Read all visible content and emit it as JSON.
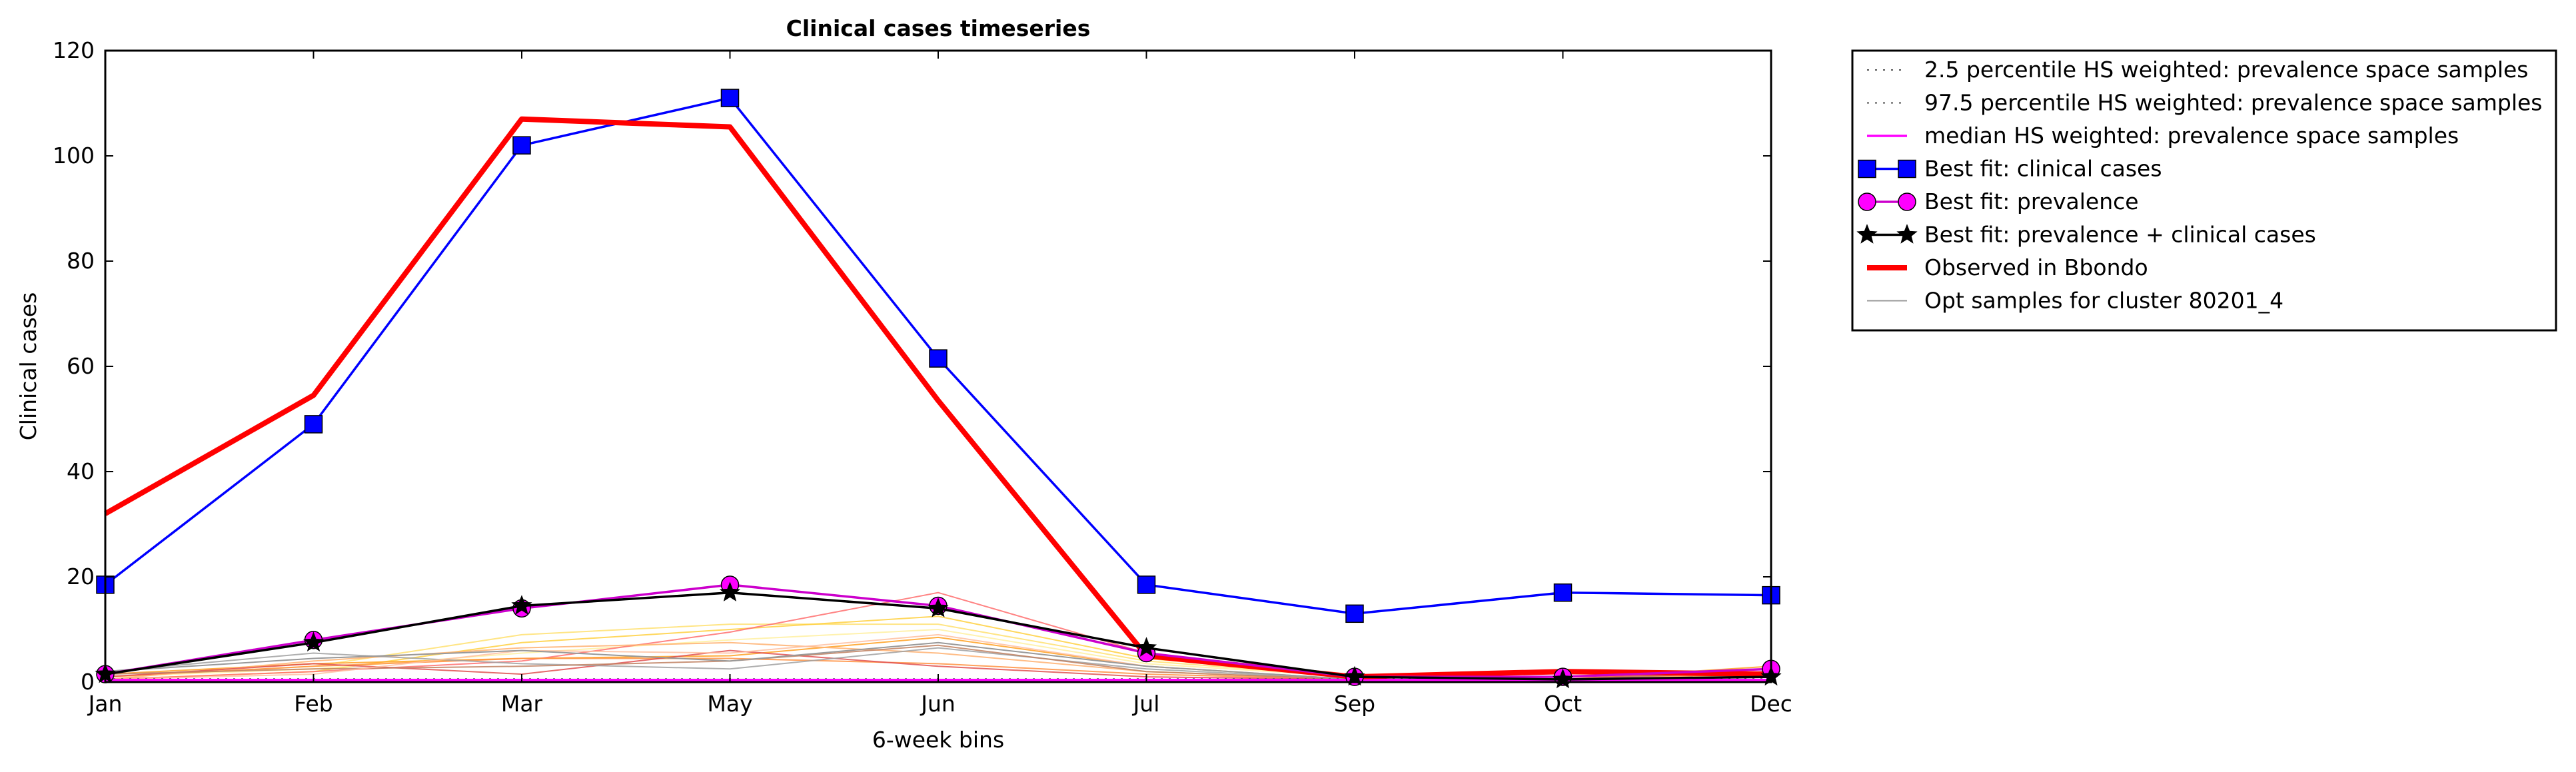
{
  "chart_data": {
    "type": "line",
    "title": "Clinical cases timeseries",
    "xlabel": "6-week bins",
    "ylabel": "Clinical cases",
    "categories": [
      "Jan",
      "Feb",
      "Mar",
      "May",
      "Jun",
      "Jul",
      "Sep",
      "Oct",
      "Dec"
    ],
    "ylim": [
      0,
      120
    ],
    "yticks": [
      0,
      20,
      40,
      60,
      80,
      100,
      120
    ],
    "grid": false,
    "legend_placement": "outside-top-right",
    "series": [
      {
        "name": "2.5 percentile HS weighted: prevalence space samples",
        "style": "dotted",
        "color": "#555555",
        "values": [
          0.3,
          0.3,
          0.3,
          0.3,
          0.3,
          0.3,
          0.3,
          0.3,
          0.3
        ]
      },
      {
        "name": "97.5 percentile HS weighted: prevalence space samples",
        "style": "dotted",
        "color": "#555555",
        "values": [
          0.6,
          0.6,
          0.6,
          0.6,
          0.6,
          0.6,
          0.6,
          0.6,
          0.6
        ]
      },
      {
        "name": "median HS weighted: prevalence space samples",
        "style": "solid",
        "color": "#ff00ff",
        "values": [
          0.4,
          0.4,
          0.4,
          0.4,
          0.4,
          0.4,
          0.4,
          0.4,
          0.4
        ]
      },
      {
        "name": "Best fit: clinical cases",
        "style": "solid",
        "marker": "square",
        "color": "#0000ff",
        "values": [
          18.5,
          49,
          102,
          111,
          61.5,
          18.5,
          13,
          17,
          16.5
        ]
      },
      {
        "name": "Best fit: prevalence",
        "style": "solid",
        "marker": "circle",
        "color": "#cc00cc",
        "values": [
          1.5,
          8,
          14,
          18.5,
          14.5,
          5.5,
          1,
          1,
          2.5
        ]
      },
      {
        "name": "Best fit: prevalence + clinical cases",
        "style": "solid",
        "marker": "star",
        "color": "#000000",
        "values": [
          1.5,
          7.5,
          14.5,
          17,
          14,
          6.5,
          1,
          0.5,
          1
        ]
      },
      {
        "name": "Observed in Bbondo",
        "style": "thick",
        "color": "#ff0000",
        "values": [
          32,
          54.5,
          107,
          105.5,
          53.5,
          5,
          1,
          2,
          1.5
        ]
      },
      {
        "name": "Opt samples for cluster 80201_4",
        "style": "thin",
        "color": "#999999",
        "values": [
          2,
          4.5,
          6,
          4,
          7.5,
          3,
          0.5,
          0.5,
          1
        ]
      }
    ],
    "sample_series": [
      {
        "color": "#ffe070",
        "values": [
          1,
          3,
          9,
          11,
          11,
          4,
          1,
          0.5,
          1
        ]
      },
      {
        "color": "#ffd040",
        "values": [
          0.5,
          2,
          7.5,
          10,
          12.5,
          4.5,
          1,
          0.5,
          2.5
        ]
      },
      {
        "color": "#fff0a0",
        "values": [
          1,
          2.5,
          5.5,
          8,
          10,
          3.5,
          1,
          0.5,
          1.5
        ]
      },
      {
        "color": "#ffa020",
        "values": [
          1.5,
          3.5,
          4.5,
          5,
          8.5,
          3,
          0.5,
          0.5,
          3
        ]
      },
      {
        "color": "#ff7070",
        "values": [
          0.5,
          2,
          4,
          9.5,
          17,
          5.5,
          1,
          0.5,
          1
        ]
      },
      {
        "color": "#ff9040",
        "values": [
          1,
          3,
          4.5,
          4.5,
          3.5,
          1.5,
          0.5,
          0.5,
          2
        ]
      },
      {
        "color": "#ffb070",
        "values": [
          0.5,
          4,
          6.5,
          7.5,
          5.5,
          2,
          0.5,
          0.5,
          1.5
        ]
      },
      {
        "color": "#e05050",
        "values": [
          1,
          3.5,
          1.5,
          6,
          3,
          1,
          0.5,
          0.5,
          2.5
        ]
      },
      {
        "color": "#a0a0a0",
        "values": [
          2,
          5.5,
          3.5,
          2.5,
          6.5,
          2.5,
          0.5,
          0.5,
          1
        ]
      },
      {
        "color": "#c08060",
        "values": [
          1.5,
          2.5,
          3,
          4,
          7,
          2,
          0.5,
          0.5,
          2
        ]
      },
      {
        "color": "#ffc0a0",
        "values": [
          0.5,
          1.5,
          6,
          5.5,
          9,
          3,
          0.5,
          0.5,
          0.5
        ]
      }
    ]
  }
}
